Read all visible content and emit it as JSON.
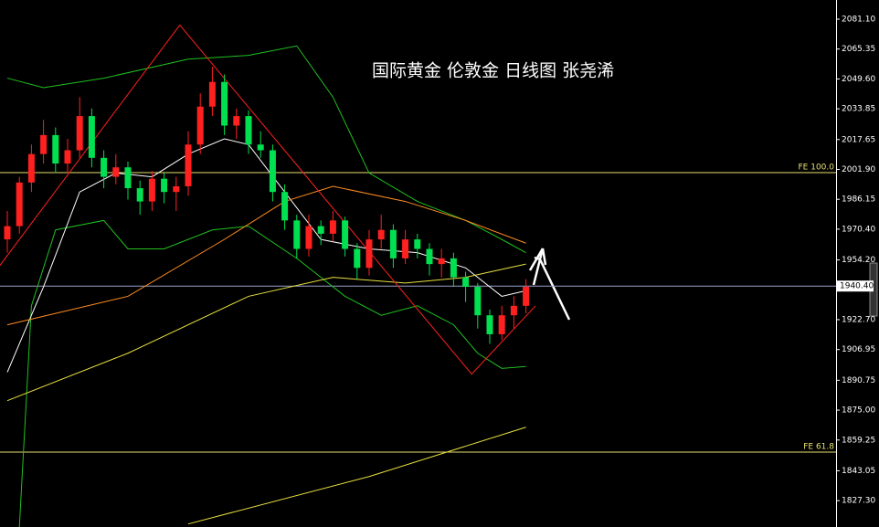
{
  "chart_data": {
    "type": "candlestick",
    "title": "国际黄金 伦敦金 日线图 张尧浠",
    "up_color": "#ff2020",
    "down_color": "#00e050",
    "ylim": [
      1813.4,
      2091.2
    ],
    "yticks": [
      {
        "value": 2081.1,
        "label": "2081.10"
      },
      {
        "value": 2065.35,
        "label": "2065.35"
      },
      {
        "value": 2049.6,
        "label": "2049.60"
      },
      {
        "value": 2033.85,
        "label": "2033.85"
      },
      {
        "value": 2017.65,
        "label": "2017.65"
      },
      {
        "value": 2001.9,
        "label": "2001.90"
      },
      {
        "value": 1986.15,
        "label": "1986.15"
      },
      {
        "value": 1970.4,
        "label": "1970.40"
      },
      {
        "value": 1954.2,
        "label": "1954.20"
      },
      {
        "value": 1922.7,
        "label": "1922.70"
      },
      {
        "value": 1906.95,
        "label": "1906.95"
      },
      {
        "value": 1890.75,
        "label": "1890.75"
      },
      {
        "value": 1875.0,
        "label": "1875.00"
      },
      {
        "value": 1859.25,
        "label": "1859.25"
      },
      {
        "value": 1843.05,
        "label": "1843.05"
      },
      {
        "value": 1827.3,
        "label": "1827.30"
      }
    ],
    "current_price": {
      "value": 1940.4,
      "label": "1940.40"
    },
    "levels": [
      {
        "label": "FE 100.0",
        "value": 2000.2,
        "color": "#e8e070"
      },
      {
        "label": "FE 61.8",
        "value": 1852.9,
        "color": "#e8e070"
      }
    ],
    "candles": [
      [
        1965,
        1980,
        1958,
        1972
      ],
      [
        1972,
        1998,
        1968,
        1995
      ],
      [
        1995,
        2015,
        1990,
        2010
      ],
      [
        2010,
        2028,
        2005,
        2020
      ],
      [
        2020,
        2024,
        2000,
        2005
      ],
      [
        2005,
        2018,
        2000,
        2012
      ],
      [
        2012,
        2040,
        2008,
        2030
      ],
      [
        2030,
        2034,
        2003,
        2008
      ],
      [
        2008,
        2012,
        1992,
        1998
      ],
      [
        1998,
        2010,
        1994,
        2003
      ],
      [
        2003,
        2006,
        1986,
        1992
      ],
      [
        1992,
        1996,
        1978,
        1985
      ],
      [
        1985,
        2001,
        1980,
        1997
      ],
      [
        1997,
        2000,
        1984,
        1990
      ],
      [
        1990,
        1998,
        1980,
        1993
      ],
      [
        1993,
        2022,
        1988,
        2015
      ],
      [
        2015,
        2042,
        2010,
        2035
      ],
      [
        2035,
        2056,
        2030,
        2048
      ],
      [
        2048,
        2052,
        2020,
        2025
      ],
      [
        2025,
        2034,
        2018,
        2030
      ],
      [
        2030,
        2033,
        2010,
        2015
      ],
      [
        2015,
        2022,
        2008,
        2012
      ],
      [
        2012,
        2015,
        1985,
        1990
      ],
      [
        1990,
        1994,
        1970,
        1975
      ],
      [
        1975,
        1978,
        1955,
        1960
      ],
      [
        1960,
        1978,
        1956,
        1972
      ],
      [
        1972,
        1975,
        1962,
        1968
      ],
      [
        1968,
        1980,
        1964,
        1975
      ],
      [
        1975,
        1977,
        1956,
        1960
      ],
      [
        1960,
        1963,
        1944,
        1950
      ],
      [
        1950,
        1970,
        1946,
        1965
      ],
      [
        1965,
        1978,
        1960,
        1970
      ],
      [
        1970,
        1973,
        1950,
        1955
      ],
      [
        1955,
        1970,
        1952,
        1965
      ],
      [
        1965,
        1968,
        1955,
        1960
      ],
      [
        1960,
        1963,
        1946,
        1952
      ],
      [
        1952,
        1960,
        1945,
        1955
      ],
      [
        1955,
        1958,
        1940,
        1945
      ],
      [
        1945,
        1948,
        1932,
        1940
      ],
      [
        1940,
        1942,
        1918,
        1925
      ],
      [
        1925,
        1928,
        1910,
        1915
      ],
      [
        1915,
        1930,
        1912,
        1925
      ],
      [
        1925,
        1935,
        1918,
        1930
      ],
      [
        1930,
        1944,
        1926,
        1940
      ]
    ],
    "series": [
      {
        "color": "#20c020",
        "x": [
          0,
          3,
          8,
          15,
          20,
          24,
          27,
          30,
          34,
          38,
          41,
          43
        ],
        "values": [
          2050,
          2045,
          2050,
          2060,
          2062,
          2067,
          2040,
          2000,
          1985,
          1975,
          1965,
          1958
        ]
      },
      {
        "color": "#20c020",
        "x": [
          1,
          2,
          4,
          8,
          10,
          13,
          17,
          20,
          24,
          28,
          31,
          34,
          37,
          39,
          41,
          43
        ],
        "values": [
          1813.4,
          1930,
          1970,
          1975,
          1960,
          1960,
          1970,
          1972,
          1955,
          1935,
          1925,
          1930,
          1920,
          1905,
          1897,
          1898
        ]
      },
      {
        "color": "#ffffff",
        "x": [
          0,
          3,
          6,
          9,
          12,
          15,
          18,
          20,
          23,
          26,
          30,
          34,
          38,
          41,
          43
        ],
        "values": [
          1895,
          1940,
          1990,
          2000,
          1998,
          2010,
          2018,
          2015,
          1990,
          1965,
          1960,
          1958,
          1950,
          1935,
          1938
        ]
      },
      {
        "color": "#ff8c20",
        "x": [
          0,
          10,
          18,
          23,
          27,
          33,
          38,
          43
        ],
        "values": [
          1920,
          1935,
          1965,
          1985,
          1993,
          1985,
          1975,
          1963
        ]
      },
      {
        "color": "#e8e040",
        "x": [
          0,
          10,
          20,
          27,
          33,
          38,
          43
        ],
        "values": [
          1880,
          1905,
          1935,
          1945,
          1942,
          1945,
          1952
        ]
      },
      {
        "color": "#e8e040",
        "x": [
          15,
          30,
          43
        ],
        "values": [
          1815,
          1840,
          1866
        ]
      },
      {
        "color": "#ff2020",
        "x": [
          -1,
          14.3,
          38.5,
          43.8
        ],
        "values": [
          1948,
          2078,
          1894,
          1930
        ]
      }
    ]
  }
}
